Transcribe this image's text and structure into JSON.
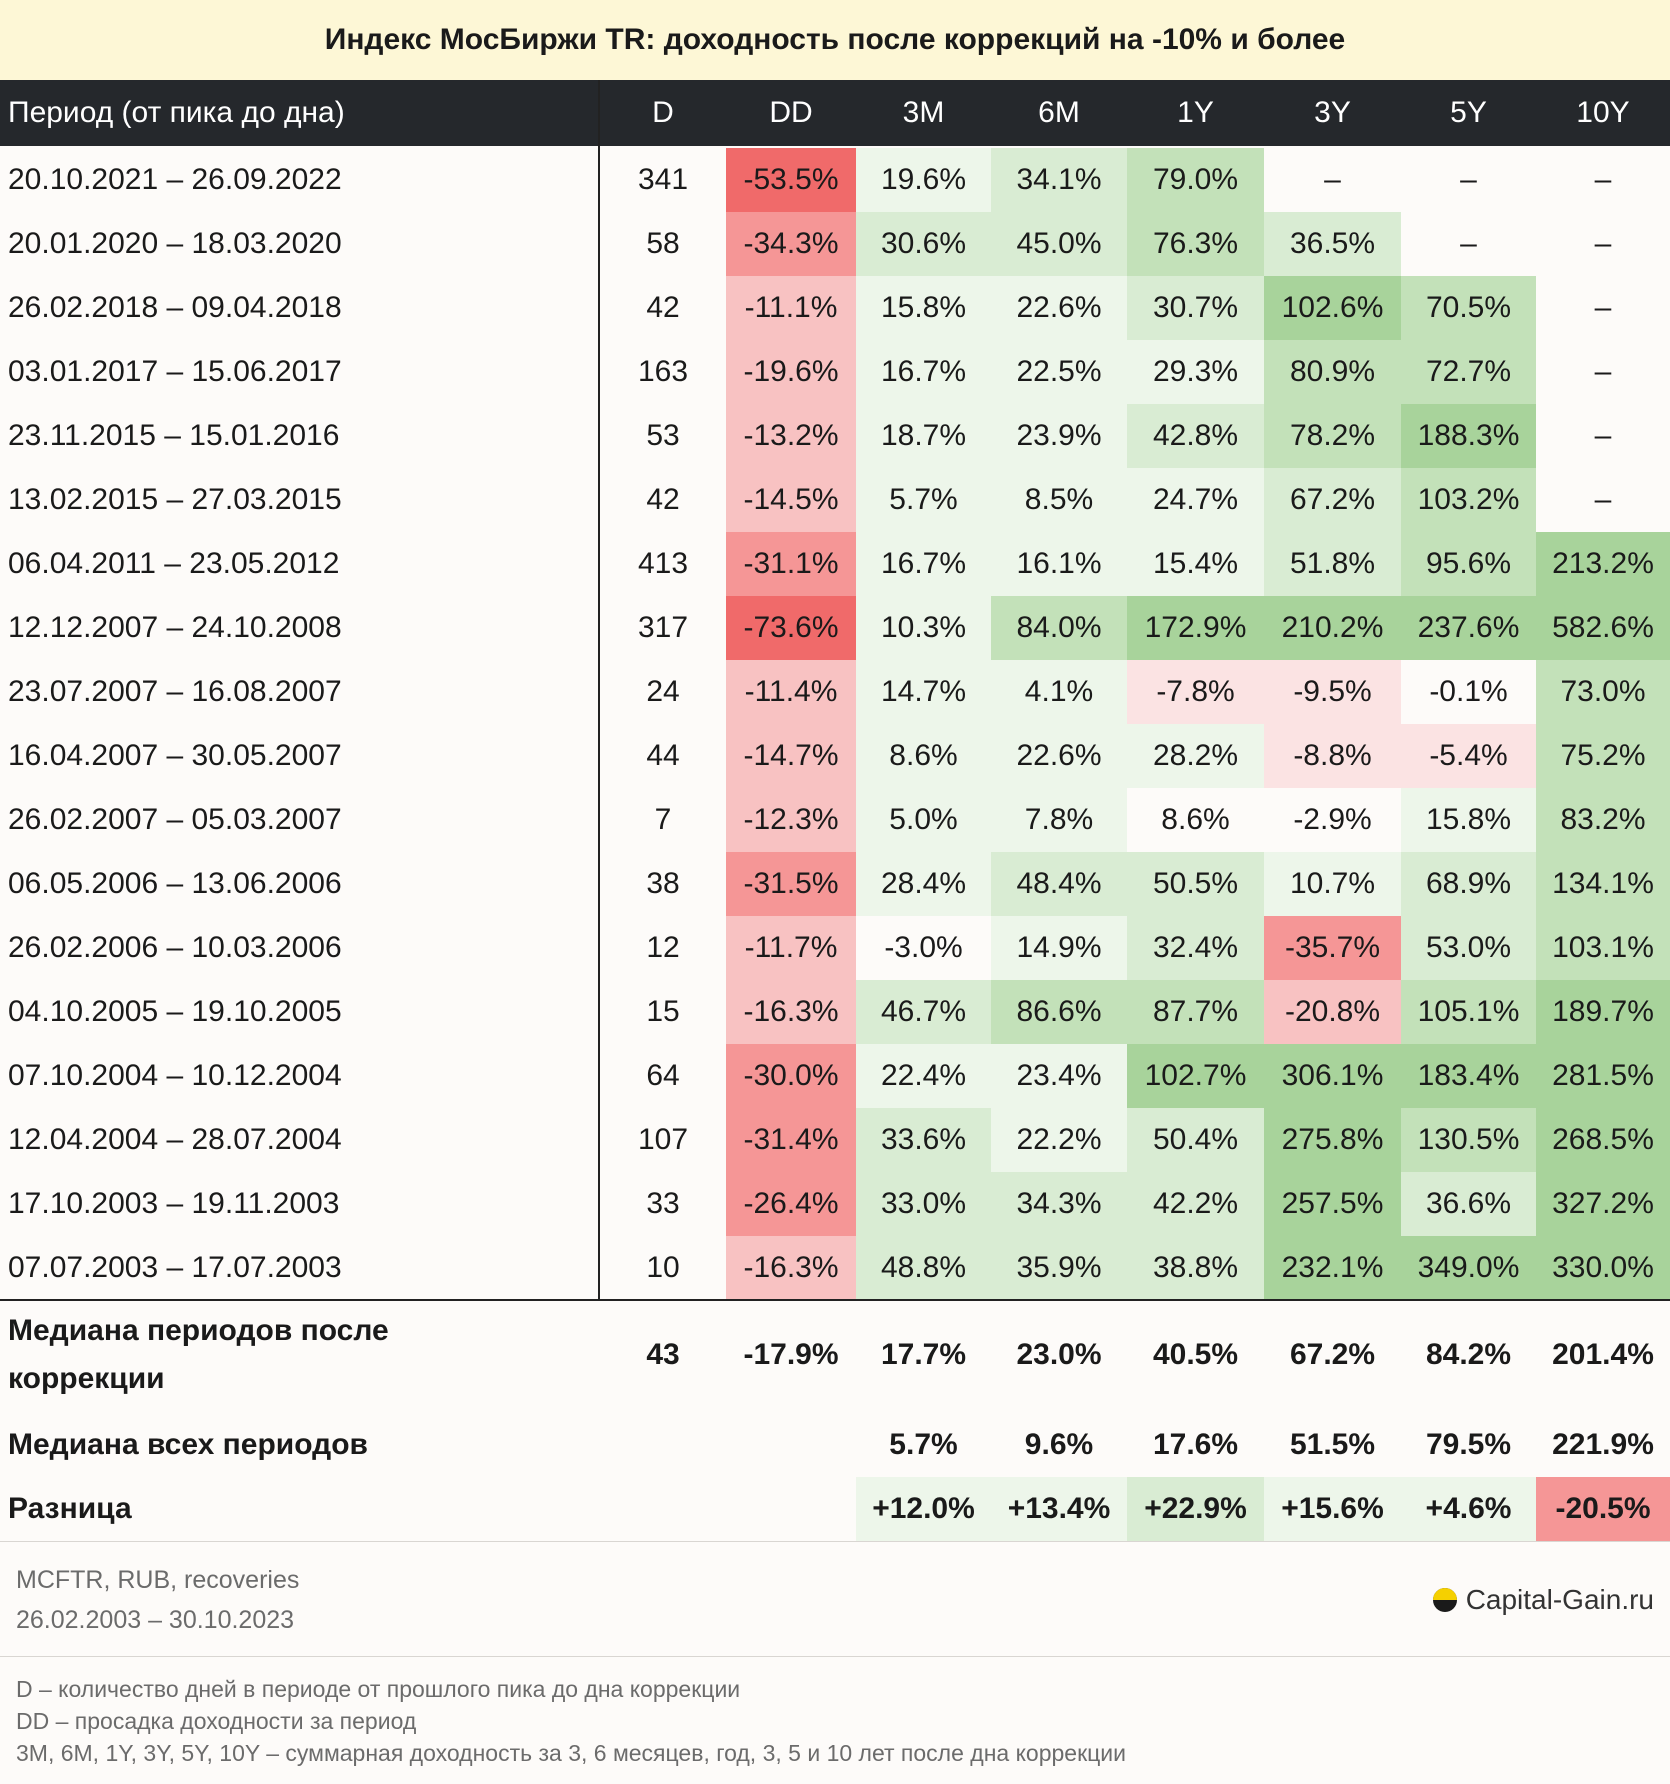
{
  "title": "Индекс МосБиржи TR: доходность после коррекций на -10% и более",
  "header": [
    "Период (от пика до дна)",
    "D",
    "DD",
    "3M",
    "6M",
    "1Y",
    "3Y",
    "5Y",
    "10Y"
  ],
  "chart_data": {
    "type": "table",
    "columns": [
      "Период (от пика до дна)",
      "D",
      "DD",
      "3M",
      "6M",
      "1Y",
      "3Y",
      "5Y",
      "10Y"
    ],
    "rows": [
      [
        "20.10.2021 – 26.09.2022",
        "341",
        "-53.5%",
        "19.6%",
        "34.1%",
        "79.0%",
        "–",
        "–",
        "–"
      ],
      [
        "20.01.2020 – 18.03.2020",
        "58",
        "-34.3%",
        "30.6%",
        "45.0%",
        "76.3%",
        "36.5%",
        "–",
        "–"
      ],
      [
        "26.02.2018 – 09.04.2018",
        "42",
        "-11.1%",
        "15.8%",
        "22.6%",
        "30.7%",
        "102.6%",
        "70.5%",
        "–"
      ],
      [
        "03.01.2017 – 15.06.2017",
        "163",
        "-19.6%",
        "16.7%",
        "22.5%",
        "29.3%",
        "80.9%",
        "72.7%",
        "–"
      ],
      [
        "23.11.2015 – 15.01.2016",
        "53",
        "-13.2%",
        "18.7%",
        "23.9%",
        "42.8%",
        "78.2%",
        "188.3%",
        "–"
      ],
      [
        "13.02.2015 – 27.03.2015",
        "42",
        "-14.5%",
        "5.7%",
        "8.5%",
        "24.7%",
        "67.2%",
        "103.2%",
        "–"
      ],
      [
        "06.04.2011 – 23.05.2012",
        "413",
        "-31.1%",
        "16.7%",
        "16.1%",
        "15.4%",
        "51.8%",
        "95.6%",
        "213.2%"
      ],
      [
        "12.12.2007 – 24.10.2008",
        "317",
        "-73.6%",
        "10.3%",
        "84.0%",
        "172.9%",
        "210.2%",
        "237.6%",
        "582.6%"
      ],
      [
        "23.07.2007 – 16.08.2007",
        "24",
        "-11.4%",
        "14.7%",
        "4.1%",
        "-7.8%",
        "-9.5%",
        "-0.1%",
        "73.0%"
      ],
      [
        "16.04.2007 – 30.05.2007",
        "44",
        "-14.7%",
        "8.6%",
        "22.6%",
        "28.2%",
        "-8.8%",
        "-5.4%",
        "75.2%"
      ],
      [
        "26.02.2007 – 05.03.2007",
        "7",
        "-12.3%",
        "5.0%",
        "7.8%",
        "8.6%",
        "-2.9%",
        "15.8%",
        "83.2%"
      ],
      [
        "06.05.2006 – 13.06.2006",
        "38",
        "-31.5%",
        "28.4%",
        "48.4%",
        "50.5%",
        "10.7%",
        "68.9%",
        "134.1%"
      ],
      [
        "26.02.2006 – 10.03.2006",
        "12",
        "-11.7%",
        "-3.0%",
        "14.9%",
        "32.4%",
        "-35.7%",
        "53.0%",
        "103.1%"
      ],
      [
        "04.10.2005 – 19.10.2005",
        "15",
        "-16.3%",
        "46.7%",
        "86.6%",
        "87.7%",
        "-20.8%",
        "105.1%",
        "189.7%"
      ],
      [
        "07.10.2004 – 10.12.2004",
        "64",
        "-30.0%",
        "22.4%",
        "23.4%",
        "102.7%",
        "306.1%",
        "183.4%",
        "281.5%"
      ],
      [
        "12.04.2004 – 28.07.2004",
        "107",
        "-31.4%",
        "33.6%",
        "22.2%",
        "50.4%",
        "275.8%",
        "130.5%",
        "268.5%"
      ],
      [
        "17.10.2003 – 19.11.2003",
        "33",
        "-26.4%",
        "33.0%",
        "34.3%",
        "42.2%",
        "257.5%",
        "36.6%",
        "327.2%"
      ],
      [
        "07.07.2003 – 17.07.2003",
        "10",
        "-16.3%",
        "48.8%",
        "35.9%",
        "38.8%",
        "232.1%",
        "349.0%",
        "330.0%"
      ]
    ],
    "summary": [
      {
        "label": "Медиана периодов после коррекции",
        "values": [
          "43",
          "-17.9%",
          "17.7%",
          "23.0%",
          "40.5%",
          "67.2%",
          "84.2%",
          "201.4%"
        ]
      },
      {
        "label": "Медиана всех периодов",
        "values": [
          "",
          "",
          "5.7%",
          "9.6%",
          "17.6%",
          "51.5%",
          "79.5%",
          "221.9%"
        ]
      },
      {
        "label": "Разница",
        "values": [
          "",
          "",
          "+12.0%",
          "+13.4%",
          "+22.9%",
          "+15.6%",
          "+4.6%",
          "-20.5%"
        ]
      }
    ]
  },
  "source": {
    "line1": "MCFTR, RUB, recoveries",
    "line2": "26.02.2003 – 30.10.2023",
    "brand": "Capital-Gain.ru"
  },
  "notes": [
    "D – количество дней в периоде от прошлого пика до дна коррекции",
    "DD – просадка доходности за период",
    "3M, 6M, 1Y, 3Y, 5Y, 10Y – суммарная доходность за 3, 6 месяцев, год, 3, 5 и 10 лет после дна коррекции"
  ],
  "colors": {
    "title_bg": "#fdf7d6",
    "header_bg": "#25282c",
    "green_scale": [
      "#edf6ea",
      "#d9ecd3",
      "#c3e1b9",
      "#a8d39b"
    ],
    "red_scale": [
      "#fbe3e3",
      "#f8c2c2",
      "#f59696",
      "#f06a6a"
    ]
  }
}
